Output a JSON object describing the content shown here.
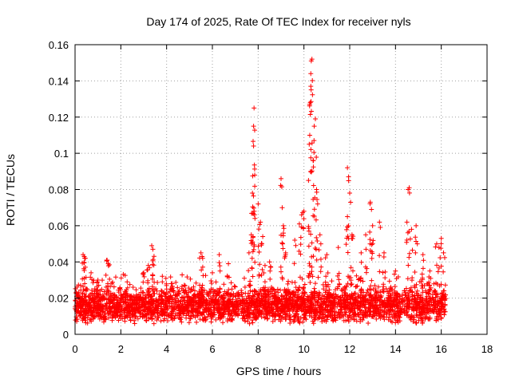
{
  "chart_data": {
    "type": "scatter",
    "title": "Day 174 of 2025, Rate Of TEC Index for receiver nyls",
    "xlabel": "GPS time / hours",
    "ylabel": "ROTI / TECUs",
    "xlim": [
      0,
      18
    ],
    "ylim": [
      0,
      0.16
    ],
    "xticks": [
      0,
      2,
      4,
      6,
      8,
      10,
      12,
      14,
      16,
      18
    ],
    "yticks": [
      0,
      0.02,
      0.04,
      0.06,
      0.08,
      0.1,
      0.12,
      0.14,
      0.16
    ],
    "xtick_labels": [
      "0",
      "2",
      "4",
      "6",
      "8",
      "10",
      "12",
      "14",
      "16",
      "18"
    ],
    "ytick_labels": [
      "0",
      "0.02",
      "0.04",
      "0.06",
      "0.08",
      "0.1",
      "0.12",
      "0.14",
      "0.16"
    ],
    "grid": true,
    "marker": "+",
    "color": "#ff0000",
    "x_data_range": [
      0,
      16.2
    ],
    "series": [
      {
        "name": "ROTI",
        "note": "dense band of points 0.005–0.03 TECU/s from 0 to 16.2 h; notable peaks listed",
        "points": [
          [
            0.35,
            0.044
          ],
          [
            0.4,
            0.043
          ],
          [
            0.45,
            0.042
          ],
          [
            0.7,
            0.034
          ],
          [
            1.0,
            0.03
          ],
          [
            1.4,
            0.041
          ],
          [
            1.45,
            0.039
          ],
          [
            3.0,
            0.034
          ],
          [
            3.2,
            0.038
          ],
          [
            3.35,
            0.049
          ],
          [
            3.4,
            0.047
          ],
          [
            4.0,
            0.025
          ],
          [
            4.2,
            0.028
          ],
          [
            5.5,
            0.045
          ],
          [
            5.55,
            0.043
          ],
          [
            6.0,
            0.034
          ],
          [
            6.3,
            0.044
          ],
          [
            6.7,
            0.039
          ],
          [
            7.6,
            0.045
          ],
          [
            7.7,
            0.055
          ],
          [
            7.75,
            0.078
          ],
          [
            7.8,
            0.104
          ],
          [
            7.8,
            0.115
          ],
          [
            7.82,
            0.125
          ],
          [
            7.85,
            0.088
          ],
          [
            8.0,
            0.072
          ],
          [
            8.1,
            0.062
          ],
          [
            8.2,
            0.054
          ],
          [
            8.3,
            0.038
          ],
          [
            8.5,
            0.04
          ],
          [
            9.0,
            0.086
          ],
          [
            9.05,
            0.07
          ],
          [
            9.1,
            0.06
          ],
          [
            9.2,
            0.045
          ],
          [
            9.6,
            0.052
          ],
          [
            9.8,
            0.061
          ],
          [
            9.9,
            0.066
          ],
          [
            10.0,
            0.068
          ],
          [
            10.2,
            0.085
          ],
          [
            10.25,
            0.127
          ],
          [
            10.3,
            0.137
          ],
          [
            10.3,
            0.144
          ],
          [
            10.32,
            0.151
          ],
          [
            10.35,
            0.152
          ],
          [
            10.4,
            0.096
          ],
          [
            10.45,
            0.115
          ],
          [
            10.5,
            0.119
          ],
          [
            10.55,
            0.08
          ],
          [
            10.6,
            0.072
          ],
          [
            10.7,
            0.055
          ],
          [
            11.0,
            0.044
          ],
          [
            11.5,
            0.048
          ],
          [
            11.9,
            0.092
          ],
          [
            11.95,
            0.087
          ],
          [
            12.0,
            0.078
          ],
          [
            11.9,
            0.065
          ],
          [
            12.1,
            0.055
          ],
          [
            12.5,
            0.045
          ],
          [
            12.7,
            0.055
          ],
          [
            12.9,
            0.073
          ],
          [
            12.95,
            0.069
          ],
          [
            13.0,
            0.06
          ],
          [
            13.3,
            0.062
          ],
          [
            13.5,
            0.045
          ],
          [
            14.0,
            0.035
          ],
          [
            14.5,
            0.062
          ],
          [
            14.55,
            0.08
          ],
          [
            14.6,
            0.081
          ],
          [
            14.7,
            0.058
          ],
          [
            14.9,
            0.06
          ],
          [
            15.2,
            0.044
          ],
          [
            15.5,
            0.035
          ],
          [
            15.8,
            0.05
          ],
          [
            15.9,
            0.048
          ],
          [
            16.0,
            0.053
          ],
          [
            16.1,
            0.045
          ]
        ]
      }
    ]
  }
}
